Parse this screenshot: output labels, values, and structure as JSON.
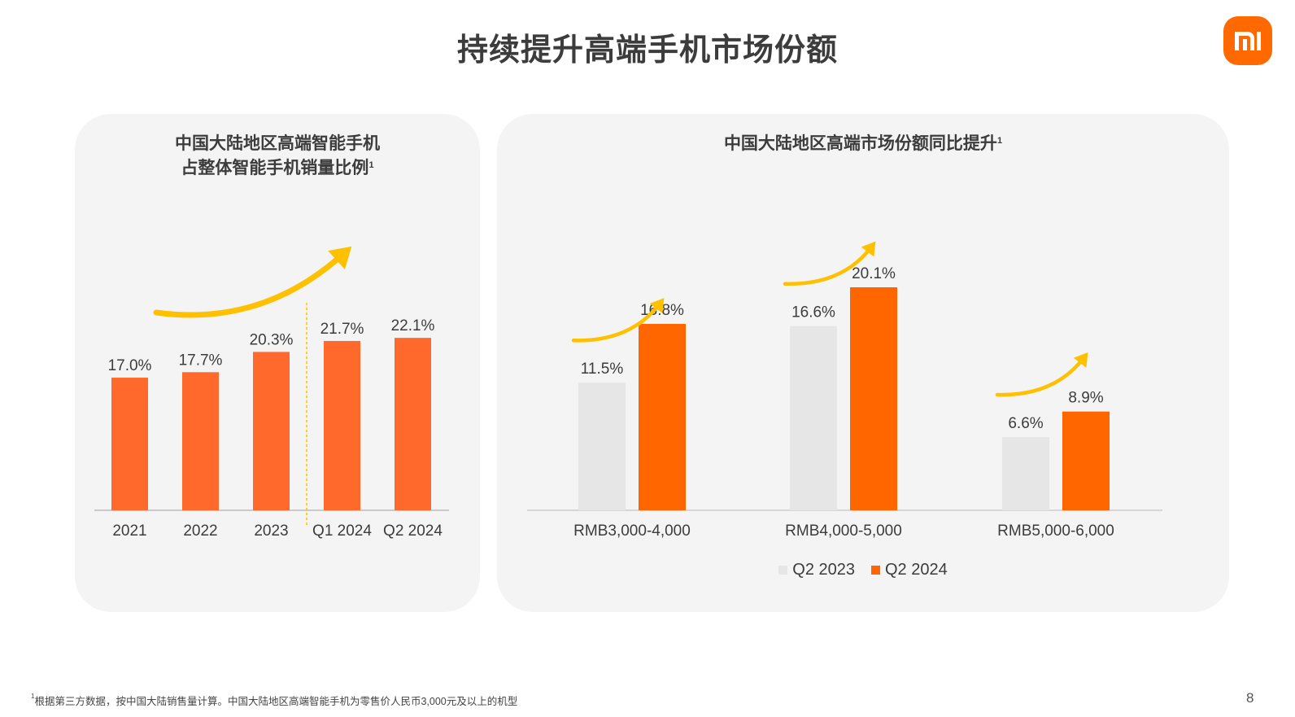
{
  "page": {
    "title": "持续提升高端手机市场份额",
    "page_number": "8",
    "footnote_marker": "1",
    "footnote": "根据第三方数据，按中国大陆销售量计算。中国大陆地区高端智能手机为零售价人民币3,000元及以上的机型"
  },
  "logo": {
    "text": "mi",
    "color": "#ff6900",
    "icon": "xiaomi-logo"
  },
  "colors": {
    "accent": "#ff6a2c",
    "orange": "#ff6600",
    "gray_bar": "#e6e6e6",
    "arrow": "#ffc000",
    "panel_bg": "#f4f4f4"
  },
  "chart_data": [
    {
      "type": "bar",
      "title_line1": "中国大陆地区高端智能手机",
      "title_line2": "占整体智能手机销量比例",
      "title_marker": "1",
      "categories": [
        "2021",
        "2022",
        "2023",
        "Q1 2024",
        "Q2 2024"
      ],
      "values": [
        17.0,
        17.7,
        20.3,
        21.7,
        22.1
      ],
      "labels": [
        "17.0%",
        "17.7%",
        "20.3%",
        "21.7%",
        "22.1%"
      ],
      "ylim": [
        0,
        24.2
      ],
      "divider_after_index": 2,
      "bar_color": "#ff6a2c"
    },
    {
      "type": "bar",
      "title": "中国大陆地区高端市场份额同比提升",
      "title_marker": "1",
      "categories": [
        "RMB3,000-4,000",
        "RMB4,000-5,000",
        "RMB5,000-6,000"
      ],
      "series": [
        {
          "name": "Q2 2023",
          "values": [
            11.5,
            16.6,
            6.6
          ],
          "labels": [
            "11.5%",
            "16.6%",
            "6.6%"
          ],
          "color": "#e6e6e6"
        },
        {
          "name": "Q2 2024",
          "values": [
            16.8,
            20.1,
            8.9
          ],
          "labels": [
            "16.8%",
            "20.1%",
            "8.9%"
          ],
          "color": "#ff6600"
        }
      ],
      "ylim": [
        0,
        23
      ],
      "legend": "bottom"
    }
  ]
}
